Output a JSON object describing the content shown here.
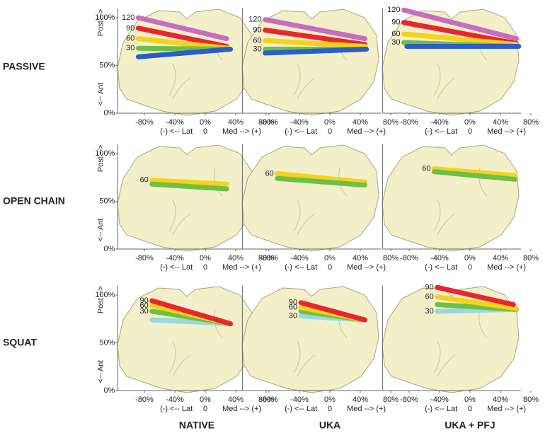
{
  "rows": [
    "PASSIVE",
    "OPEN CHAIN",
    "SQUAT"
  ],
  "columns": [
    "NATIVE",
    "UKA",
    "UKA + PFJ"
  ],
  "chart_data": [
    {
      "type": "line",
      "xlim": [
        -115,
        95
      ],
      "ylim": [
        0,
        110
      ],
      "xticks": [
        {
          "value": -80,
          "label": "-80%"
        },
        {
          "value": -40,
          "label": "-40%"
        },
        {
          "value": 0,
          "label": "0%"
        },
        {
          "value": 40,
          "label": "40%"
        },
        {
          "value": 80,
          "label": "80%"
        }
      ],
      "yticks": [
        {
          "value": 0,
          "label": "0%"
        },
        {
          "value": 50,
          "label": "50%"
        },
        {
          "value": 100,
          "label": "100%"
        }
      ],
      "ylabel_top": "Post -->",
      "ylabel_bottom": "<-- Ant",
      "xlabel": {
        "left": "(-) <-- Lat",
        "center": "0",
        "right": "Med --> (+)"
      },
      "series": [
        {
          "name": "120",
          "color": "#c86cc0",
          "x": [
            -88,
            28
          ],
          "values": [
            100,
            78
          ]
        },
        {
          "name": "90",
          "color": "#e8262c",
          "x": [
            -88,
            28
          ],
          "values": [
            89,
            70
          ]
        },
        {
          "name": "60",
          "color": "#f6d21a",
          "x": [
            -88,
            30
          ],
          "values": [
            78,
            68
          ]
        },
        {
          "name": "30",
          "color": "#6cc04a",
          "x": [
            -88,
            33
          ],
          "values": [
            68,
            67
          ]
        },
        {
          "color": "#2a5ec8",
          "x": [
            -88,
            33
          ],
          "values": [
            59,
            67
          ]
        }
      ]
    },
    {
      "type": "line",
      "xlim": [
        -115,
        95
      ],
      "ylim": [
        0,
        110
      ],
      "xticks": [
        {
          "value": -80,
          "label": "-80%"
        },
        {
          "value": -40,
          "label": "-40%"
        },
        {
          "value": 0,
          "label": "0%"
        },
        {
          "value": 40,
          "label": "40%"
        },
        {
          "value": 80,
          "label": "80%"
        }
      ],
      "xlabel": {
        "left": "(-) <-- Lat",
        "center": "0",
        "right": "Med --> (+)"
      },
      "series": [
        {
          "name": "120",
          "color": "#c86cc0",
          "x": [
            -85,
            46
          ],
          "values": [
            98,
            78
          ]
        },
        {
          "name": "90",
          "color": "#e8262c",
          "x": [
            -85,
            46
          ],
          "values": [
            87,
            72
          ]
        },
        {
          "name": "60",
          "color": "#f6d21a",
          "x": [
            -85,
            46
          ],
          "values": [
            76,
            70
          ]
        },
        {
          "name": "30",
          "color": "#6cc04a",
          "x": [
            -85,
            46
          ],
          "values": [
            67,
            67
          ]
        },
        {
          "color": "#2a5ec8",
          "x": [
            -85,
            48
          ],
          "values": [
            63,
            67
          ]
        }
      ]
    },
    {
      "type": "line",
      "xlim": [
        -115,
        95
      ],
      "ylim": [
        0,
        110
      ],
      "xticks": [
        {
          "value": -80,
          "label": "-80%"
        },
        {
          "value": -40,
          "label": "-40%"
        },
        {
          "value": 0,
          "label": "0%"
        },
        {
          "value": 40,
          "label": "40%"
        },
        {
          "value": 80,
          "label": "80%"
        }
      ],
      "xlabel": {
        "left": "(-) <-- Lat",
        "center": "0",
        "right": "Med --> (+)"
      },
      "series": [
        {
          "name": "120",
          "color": "#c86cc0",
          "x": [
            -87,
            61
          ],
          "values": [
            108,
            78
          ]
        },
        {
          "name": "90",
          "color": "#e8262c",
          "x": [
            -87,
            61
          ],
          "values": [
            95,
            73
          ]
        },
        {
          "name": "60",
          "color": "#f6d21a",
          "x": [
            -87,
            61
          ],
          "values": [
            83,
            72
          ]
        },
        {
          "name": "30",
          "color": "#6cc04a",
          "x": [
            -87,
            61
          ],
          "values": [
            74,
            70
          ]
        },
        {
          "color": "#2a5ec8",
          "x": [
            -83,
            64
          ],
          "values": [
            70,
            70
          ]
        }
      ]
    },
    {
      "type": "line",
      "xlim": [
        -115,
        95
      ],
      "ylim": [
        0,
        110
      ],
      "xticks": [
        {
          "value": -80,
          "label": "-80%"
        },
        {
          "value": -40,
          "label": "-40%"
        },
        {
          "value": 0,
          "label": "0%"
        },
        {
          "value": 40,
          "label": "40%"
        },
        {
          "value": 80,
          "label": "80%"
        }
      ],
      "yticks": [
        {
          "value": 0,
          "label": "0%"
        },
        {
          "value": 50,
          "label": "50%"
        },
        {
          "value": 100,
          "label": "100%"
        }
      ],
      "ylabel_top": "Post -->",
      "ylabel_bottom": "<-- Ant",
      "xlabel": {
        "left": "(-) <-- Lat",
        "center": "0",
        "right": "Med --> (+)"
      },
      "series": [
        {
          "name": "60",
          "color": "#f6d21a",
          "x": [
            -70,
            28
          ],
          "values": [
            72,
            68
          ]
        },
        {
          "color": "#6cc04a",
          "x": [
            -70,
            28
          ],
          "values": [
            68,
            63
          ]
        }
      ]
    },
    {
      "type": "line",
      "xlim": [
        -115,
        95
      ],
      "ylim": [
        0,
        110
      ],
      "xticks": [
        {
          "value": -80,
          "label": "-80%"
        },
        {
          "value": -40,
          "label": "-40%"
        },
        {
          "value": 0,
          "label": "0%"
        },
        {
          "value": 40,
          "label": "40%"
        },
        {
          "value": 80,
          "label": "80%"
        }
      ],
      "xlabel": {
        "left": "(-) <-- Lat",
        "center": "0",
        "right": "Med --> (+)"
      },
      "series": [
        {
          "name": "60",
          "color": "#f6d21a",
          "x": [
            -69,
            46
          ],
          "values": [
            79,
            70
          ]
        },
        {
          "color": "#6cc04a",
          "x": [
            -69,
            46
          ],
          "values": [
            74,
            67
          ]
        }
      ]
    },
    {
      "type": "line",
      "xlim": [
        -115,
        95
      ],
      "ylim": [
        0,
        110
      ],
      "xticks": [
        {
          "value": -80,
          "label": "-80%"
        },
        {
          "value": -40,
          "label": "-40%"
        },
        {
          "value": 0,
          "label": "0%"
        },
        {
          "value": 40,
          "label": "40%"
        },
        {
          "value": 80,
          "label": "80%"
        }
      ],
      "xlabel": {
        "left": "(-) <-- Lat",
        "center": "0",
        "right": "Med --> (+)"
      },
      "series": [
        {
          "name": "60",
          "color": "#f6d21a",
          "x": [
            -47,
            59
          ],
          "values": [
            84,
            77
          ]
        },
        {
          "color": "#6cc04a",
          "x": [
            -47,
            59
          ],
          "values": [
            81,
            73
          ]
        }
      ]
    },
    {
      "type": "line",
      "xlim": [
        -115,
        95
      ],
      "ylim": [
        0,
        110
      ],
      "xticks": [
        {
          "value": -80,
          "label": "-80%"
        },
        {
          "value": -40,
          "label": "-40%"
        },
        {
          "value": 0,
          "label": "0%"
        },
        {
          "value": 40,
          "label": "40%"
        },
        {
          "value": 80,
          "label": "80%"
        }
      ],
      "yticks": [
        {
          "value": 0,
          "label": "0%"
        },
        {
          "value": 50,
          "label": "50%"
        },
        {
          "value": 100,
          "label": "100%"
        }
      ],
      "ylabel_top": "Post -->",
      "ylabel_bottom": "<-- Ant",
      "xlabel": {
        "left": "(-) <-- Lat",
        "center": "0",
        "right": "Med --> (+)"
      },
      "series": [
        {
          "color": "#9ad8e0",
          "x": [
            -70,
            33
          ],
          "values": [
            74,
            70
          ]
        },
        {
          "name": "30",
          "color": "#6cc04a",
          "x": [
            -70,
            33
          ],
          "values": [
            83,
            70
          ]
        },
        {
          "name": "60",
          "color": "#f6d21a",
          "x": [
            -70,
            33
          ],
          "values": [
            89,
            70
          ]
        },
        {
          "name": "90",
          "color": "#e8262c",
          "x": [
            -70,
            33
          ],
          "values": [
            94,
            70
          ]
        }
      ]
    },
    {
      "type": "line",
      "xlim": [
        -115,
        95
      ],
      "ylim": [
        0,
        110
      ],
      "xticks": [
        {
          "value": -80,
          "label": "-80%"
        },
        {
          "value": -40,
          "label": "-40%"
        },
        {
          "value": 0,
          "label": "0%"
        },
        {
          "value": 40,
          "label": "40%"
        },
        {
          "value": 80,
          "label": "80%"
        }
      ],
      "xlabel": {
        "left": "(-) <-- Lat",
        "center": "0",
        "right": "Med --> (+)"
      },
      "series": [
        {
          "name": "30",
          "color": "#9ad8e0",
          "x": [
            -38,
            46
          ],
          "values": [
            78,
            74
          ]
        },
        {
          "color": "#6cc04a",
          "x": [
            -38,
            46
          ],
          "values": [
            83,
            74
          ]
        },
        {
          "name": "60",
          "color": "#f6d21a",
          "x": [
            -38,
            46
          ],
          "values": [
            87,
            74
          ]
        },
        {
          "name": "90",
          "color": "#e8262c",
          "x": [
            -38,
            46
          ],
          "values": [
            92,
            74
          ]
        }
      ]
    },
    {
      "type": "line",
      "xlim": [
        -115,
        95
      ],
      "ylim": [
        0,
        110
      ],
      "xticks": [
        {
          "value": -80,
          "label": "-80%"
        },
        {
          "value": -40,
          "label": "-40%"
        },
        {
          "value": 0,
          "label": "0%"
        },
        {
          "value": 40,
          "label": "40%"
        },
        {
          "value": 80,
          "label": "80%"
        }
      ],
      "xlabel": {
        "left": "(-) <-- Lat",
        "center": "0",
        "right": "Med --> (+)"
      },
      "series": [
        {
          "name": "30",
          "color": "#9ad8e0",
          "x": [
            -43,
            61
          ],
          "values": [
            83,
            85
          ]
        },
        {
          "color": "#6cc04a",
          "x": [
            -43,
            61
          ],
          "values": [
            90,
            85
          ]
        },
        {
          "name": "60",
          "color": "#f6d21a",
          "x": [
            -43,
            61
          ],
          "values": [
            98,
            86
          ]
        },
        {
          "name": "90",
          "color": "#e8262c",
          "x": [
            -43,
            57
          ],
          "values": [
            108,
            90
          ]
        }
      ]
    }
  ]
}
